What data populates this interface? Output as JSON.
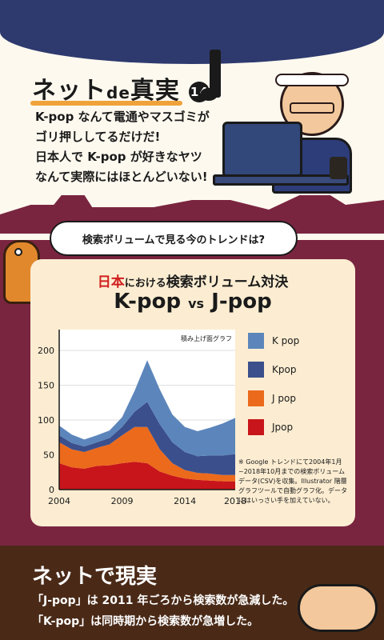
{
  "header": {
    "title_main": "ネット",
    "title_de": "de",
    "title_end": "真実",
    "title_number": "14"
  },
  "intro": {
    "lines": [
      "K-pop なんて電通やマスゴミが",
      "ゴリ押ししてるだけだ!",
      "日本人で K-pop が好きなヤツ",
      "なんて実際にはほとんどいない!"
    ]
  },
  "bubble": {
    "text": "検索ボリュームで見る今のトレンドは?"
  },
  "panel": {
    "title_red": "日本",
    "title_small": "における",
    "title_rest": "検索ボリューム対決",
    "title2_left": "K-pop",
    "title2_vs": "vs",
    "title2_right": "J-pop",
    "note": "※ Google トレンドにて2004年1月~2018年10月までの検索ボリュームデータ(CSV)を収集。Illustrator 階層グラフツールで自動グラフ化。データにはいっさい手を加えていない。"
  },
  "chart_data": {
    "type": "area",
    "stacked": true,
    "chart_label": "積み上げ面グラフ",
    "x": [
      2004,
      2005,
      2006,
      2007,
      2008,
      2009,
      2010,
      2011,
      2012,
      2013,
      2014,
      2015,
      2016,
      2017,
      2018
    ],
    "x_ticks": [
      "2004",
      "2009",
      "2014",
      "2018"
    ],
    "y_ticks": [
      "0",
      "50",
      "100",
      "150",
      "200"
    ],
    "ylim": [
      0,
      230
    ],
    "series": [
      {
        "name": "Jpop",
        "color": "#c8151b",
        "values": [
          38,
          32,
          30,
          34,
          35,
          38,
          40,
          38,
          26,
          20,
          16,
          14,
          13,
          12,
          12
        ]
      },
      {
        "name": "J pop",
        "color": "#ec6a1c",
        "values": [
          30,
          26,
          24,
          26,
          30,
          40,
          50,
          52,
          32,
          18,
          12,
          10,
          10,
          9,
          9
        ]
      },
      {
        "name": "Kpop",
        "color": "#3b4f8c",
        "values": [
          10,
          9,
          8,
          8,
          9,
          12,
          22,
          36,
          36,
          30,
          26,
          24,
          26,
          28,
          30
        ]
      },
      {
        "name": "K pop",
        "color": "#5c86bb",
        "values": [
          14,
          12,
          10,
          10,
          11,
          14,
          30,
          60,
          50,
          40,
          36,
          36,
          40,
          46,
          52
        ]
      }
    ]
  },
  "legend_order": [
    "K pop",
    "Kpop",
    "J pop",
    "Jpop"
  ],
  "bottom": {
    "title": "ネットで現実",
    "lines": [
      "「J-pop」は 2011 年ごろから検索数が急減した。",
      "「K-pop」は同時期から検索数が急増した。"
    ]
  }
}
